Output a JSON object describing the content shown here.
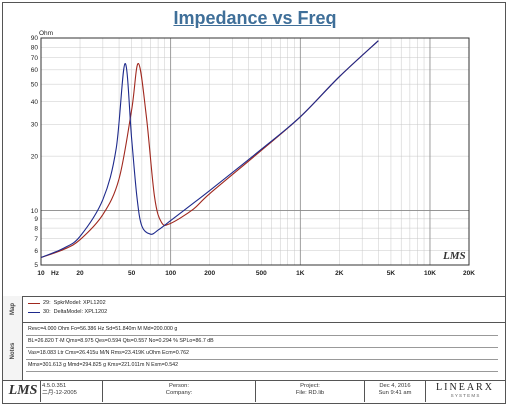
{
  "chart_data": {
    "type": "line",
    "title": "Impedance vs Freq",
    "ylabel": "Ohm",
    "xlabel": "Hz",
    "xscale": "log",
    "yscale": "log",
    "xlim": [
      10,
      20000
    ],
    "ylim": [
      5,
      90
    ],
    "x_ticks": [
      "10",
      "20",
      "50",
      "100",
      "200",
      "500",
      "1K",
      "2K",
      "5K",
      "10K",
      "20K"
    ],
    "y_ticks": [
      "5",
      "6",
      "7",
      "8",
      "9",
      "10",
      "20",
      "30",
      "40",
      "50",
      "60",
      "70",
      "80",
      "90"
    ],
    "grid": true,
    "series": [
      {
        "name": "SpkrModel: XPL1202",
        "legend_id": "29:",
        "color": "#a0281e",
        "x": [
          10,
          15,
          20,
          30,
          40,
          50,
          56.386,
          65,
          75,
          85,
          100,
          150,
          200,
          500,
          1000,
          2000,
          4000
        ],
        "y": [
          5.5,
          6.1,
          6.9,
          9.5,
          15,
          36,
          65,
          33,
          12,
          8.6,
          8.5,
          10.2,
          12.4,
          21.5,
          33,
          55,
          87
        ]
      },
      {
        "name": "DeltaModel: XPL1202",
        "legend_id": "30:",
        "color": "#1e2a8c",
        "x": [
          10,
          15,
          20,
          30,
          38,
          44.5,
          50,
          55,
          60,
          70,
          80,
          100,
          150,
          200,
          500,
          1000,
          2000,
          4000
        ],
        "y": [
          5.5,
          6.2,
          7.2,
          11.5,
          22,
          65,
          25,
          11.8,
          8.2,
          7.4,
          7.8,
          8.8,
          11,
          12.9,
          21.8,
          33,
          55,
          87
        ]
      }
    ]
  },
  "logo_text": "LMS",
  "legend": [
    {
      "id": "29:",
      "label": "SpkrModel: XPL1202",
      "color": "#a0281e"
    },
    {
      "id": "30:",
      "label": "DeltaModel: XPL1202",
      "color": "#1e2a8c"
    }
  ],
  "side_tabs": {
    "map": "Map",
    "notes": "Notes"
  },
  "notes": [
    "Revc=4.000 Ohm  Fo=56.386 Hz  Sd=51.840m M   Md=200.000 g",
    "BL=26.820 T·M  Qms=8.975  Qes=0.594  Qts=0.557  No=0.294 %  SPLo=86.7 dB",
    "Vas=18.083 Ltr  Cms=26.415u M/N  Rms=23.419K uOhm  Ecm=0.762",
    "Mms=301.613 g  Mmd=294.825 g  Kms=221.011m N  Exm=0.542"
  ],
  "footer": {
    "logo": "LMS",
    "version": "4.5.0.351",
    "date_code": "二月-12-2005",
    "person_label": "Person:",
    "company_label": "Company:",
    "project_label": "Project:",
    "file_label": "File: RD.lib",
    "date": "Dec  4, 2016",
    "time": "Sun  9:41 am",
    "brand": "LINEARX",
    "brand_sub": "S Y S T E M S"
  }
}
